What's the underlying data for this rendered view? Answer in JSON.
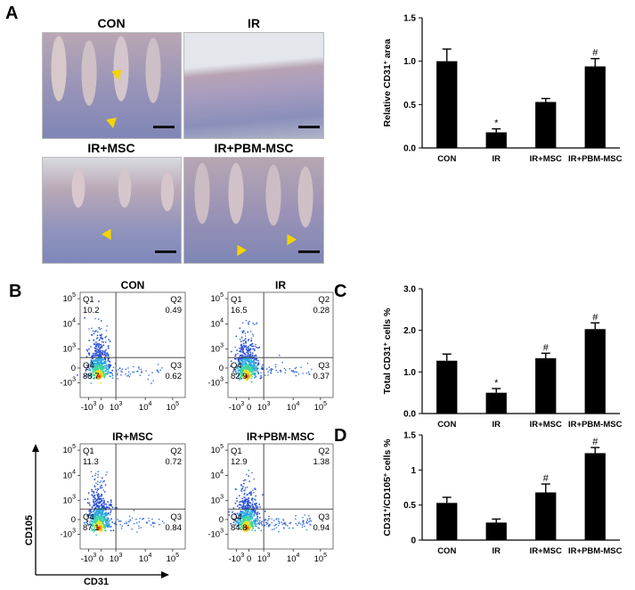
{
  "panels": {
    "A": "A",
    "B": "B",
    "C": "C",
    "D": "D"
  },
  "micro": {
    "con": "CON",
    "ir": "IR",
    "ir_msc": "IR+MSC",
    "ir_pbm": "IR+PBM-MSC"
  },
  "flow": {
    "xlabel": "CD31",
    "ylabel": "CD105",
    "plots": [
      {
        "title": "CON",
        "q1n": "Q1",
        "q1": "10.2",
        "q2n": "Q2",
        "q2": "0.49",
        "q3n": "Q3",
        "q3": "0.62",
        "q4n": "Q4",
        "q4": "88.7"
      },
      {
        "title": "IR",
        "q1n": "Q1",
        "q1": "16.5",
        "q2n": "Q2",
        "q2": "0.28",
        "q3n": "Q3",
        "q3": "0.37",
        "q4n": "Q4",
        "q4": "82.9"
      },
      {
        "title": "IR+MSC",
        "q1n": "Q1",
        "q1": "11.3",
        "q2n": "Q2",
        "q2": "0.72",
        "q3n": "Q3",
        "q3": "0.84",
        "q4n": "Q4",
        "q4": "87.1"
      },
      {
        "title": "IR+PBM-MSC",
        "q1n": "Q1",
        "q1": "12.9",
        "q2n": "Q2",
        "q2": "1.38",
        "q3n": "Q3",
        "q3": "0.94",
        "q4n": "Q4",
        "q4": "84.8"
      }
    ],
    "yticks": [
      "10^5",
      "10^4",
      "10^3",
      "0",
      "-10^3"
    ],
    "xticks": [
      "-10^3",
      "0",
      "10^3",
      "10^4",
      "10^5"
    ]
  },
  "chart_data": [
    {
      "id": "A-bar",
      "type": "bar",
      "categories": [
        "CON",
        "IR",
        "IR+MSC",
        "IR+PBM-MSC"
      ],
      "values": [
        1.0,
        0.18,
        0.53,
        0.94
      ],
      "errors": [
        0.14,
        0.04,
        0.04,
        0.09
      ],
      "annotations": [
        "",
        "*",
        "",
        "#"
      ],
      "ylabel": "Relative CD31+ area",
      "ylim": [
        0,
        1.5
      ],
      "yticks": [
        0,
        0.5,
        1.0,
        1.5
      ],
      "ytick_labels": [
        "0.0",
        "0.5",
        "1.0",
        "1.5"
      ]
    },
    {
      "id": "C-bar",
      "type": "bar",
      "categories": [
        "CON",
        "IR",
        "IR+MSC",
        "IR+PBM-MSC"
      ],
      "values": [
        1.27,
        0.5,
        1.33,
        2.03
      ],
      "errors": [
        0.16,
        0.1,
        0.12,
        0.15
      ],
      "annotations": [
        "",
        "*",
        "#",
        "#"
      ],
      "ylabel": "Total CD31+ cells %",
      "ylim": [
        0,
        3.0
      ],
      "yticks": [
        0,
        1.0,
        2.0,
        3.0
      ],
      "ytick_labels": [
        "0.0",
        "1.0",
        "2.0",
        "3.0"
      ]
    },
    {
      "id": "D-bar",
      "type": "bar",
      "categories": [
        "CON",
        "IR",
        "IR+MSC",
        "IR+PBM-MSC"
      ],
      "values": [
        0.53,
        0.25,
        0.68,
        1.24
      ],
      "errors": [
        0.08,
        0.05,
        0.12,
        0.08
      ],
      "annotations": [
        "",
        "",
        "#",
        "#"
      ],
      "ylabel": "CD31+/CD105+ cells %",
      "ylim": [
        0,
        1.5
      ],
      "yticks": [
        0,
        0.5,
        1,
        1.5
      ],
      "ytick_labels": [
        "0",
        "0.5",
        "1",
        "1.5"
      ]
    }
  ]
}
